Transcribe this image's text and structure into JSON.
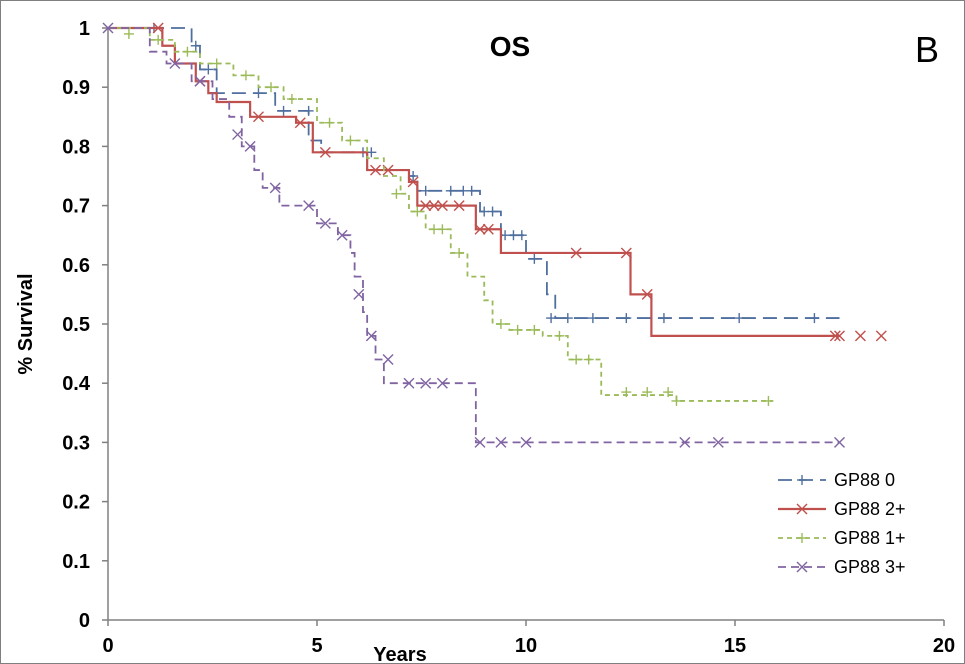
{
  "chart_data": {
    "type": "line",
    "title": "OS",
    "panel_label": "B",
    "xlabel": "Years",
    "ylabel": "% Survival",
    "xlim": [
      0,
      20
    ],
    "ylim": [
      0,
      1
    ],
    "xticks": [
      "0",
      "5",
      "10",
      "15",
      "20"
    ],
    "yticks": [
      "0",
      "0.1",
      "0.2",
      "0.3",
      "0.4",
      "0.5",
      "0.6",
      "0.7",
      "0.8",
      "0.9",
      "1"
    ],
    "grid": false,
    "legend_position": "bottom-right",
    "series": [
      {
        "name": "GP88 0",
        "color": "#4f6f9f",
        "dash": "long-dash",
        "marker": "plus",
        "x": [
          0,
          2.0,
          2.2,
          2.6,
          3.4,
          4.0,
          4.8,
          5.1,
          6.2,
          7.2,
          7.4,
          8.9,
          9.4,
          10.0,
          10.5,
          10.7,
          17.5
        ],
        "y": [
          1.0,
          0.97,
          0.93,
          0.89,
          0.89,
          0.86,
          0.81,
          0.79,
          0.76,
          0.75,
          0.725,
          0.69,
          0.65,
          0.61,
          0.55,
          0.51,
          0.51
        ],
        "censored_x": [
          1.1,
          2.1,
          2.4,
          3.6,
          4.2,
          4.8,
          6.1,
          6.3,
          7.3,
          7.6,
          8.2,
          8.5,
          8.7,
          9.0,
          9.2,
          9.5,
          9.7,
          9.9,
          10.2,
          10.6,
          11.0,
          11.6,
          12.4,
          13.3,
          15.1,
          16.9
        ],
        "censored_y": [
          1.0,
          0.97,
          0.93,
          0.89,
          0.86,
          0.86,
          0.79,
          0.79,
          0.75,
          0.725,
          0.725,
          0.725,
          0.725,
          0.69,
          0.69,
          0.65,
          0.65,
          0.65,
          0.61,
          0.51,
          0.51,
          0.51,
          0.51,
          0.51,
          0.51,
          0.51
        ]
      },
      {
        "name": "GP88 2+",
        "color": "#c0504d",
        "dash": "solid",
        "marker": "x",
        "x": [
          0,
          1.3,
          1.6,
          2.1,
          2.4,
          2.6,
          3.4,
          4.5,
          4.9,
          6.2,
          7.2,
          7.4,
          8.8,
          9.4,
          12.5,
          13.0,
          17.5
        ],
        "y": [
          1.0,
          0.97,
          0.94,
          0.91,
          0.89,
          0.875,
          0.85,
          0.84,
          0.79,
          0.76,
          0.74,
          0.7,
          0.66,
          0.62,
          0.55,
          0.48,
          0.48
        ],
        "censored_x": [
          1.2,
          2.2,
          3.6,
          4.6,
          5.2,
          6.4,
          6.7,
          7.3,
          7.6,
          7.8,
          8.0,
          8.4,
          8.9,
          9.1,
          11.2,
          12.4,
          12.9,
          17.4,
          18.0,
          18.5,
          17.5
        ],
        "censored_y": [
          1.0,
          0.91,
          0.85,
          0.84,
          0.79,
          0.76,
          0.76,
          0.74,
          0.7,
          0.7,
          0.7,
          0.7,
          0.66,
          0.66,
          0.62,
          0.62,
          0.55,
          0.48,
          0.48,
          0.48,
          0.48
        ]
      },
      {
        "name": "GP88 1+",
        "color": "#9bbb59",
        "dash": "short-dash",
        "marker": "plus",
        "x": [
          0,
          1.0,
          1.6,
          2.2,
          3.0,
          3.6,
          4.2,
          5.0,
          5.6,
          6.2,
          6.6,
          7.0,
          7.2,
          7.6,
          8.2,
          8.6,
          9.0,
          9.2,
          9.6,
          10.4,
          11.0,
          11.8,
          13.6,
          15.9
        ],
        "y": [
          1.0,
          0.98,
          0.96,
          0.94,
          0.92,
          0.9,
          0.88,
          0.84,
          0.81,
          0.78,
          0.75,
          0.72,
          0.69,
          0.66,
          0.62,
          0.58,
          0.54,
          0.5,
          0.49,
          0.48,
          0.44,
          0.38,
          0.37,
          0.37
        ],
        "censored_x": [
          0.5,
          1.2,
          1.9,
          2.6,
          3.3,
          3.9,
          4.4,
          5.3,
          5.8,
          6.9,
          7.4,
          7.8,
          8.0,
          8.4,
          9.4,
          9.8,
          10.2,
          10.8,
          11.2,
          11.5,
          12.4,
          12.9,
          13.4,
          13.6,
          15.8
        ],
        "censored_y": [
          0.99,
          0.98,
          0.96,
          0.94,
          0.92,
          0.9,
          0.88,
          0.84,
          0.81,
          0.72,
          0.69,
          0.66,
          0.66,
          0.62,
          0.5,
          0.49,
          0.49,
          0.48,
          0.44,
          0.44,
          0.385,
          0.385,
          0.385,
          0.37,
          0.37
        ]
      },
      {
        "name": "GP88 3+",
        "color": "#8064a2",
        "dash": "dash",
        "marker": "x",
        "x": [
          0,
          1.0,
          1.4,
          2.0,
          2.5,
          2.9,
          3.2,
          3.5,
          3.7,
          4.1,
          4.4,
          5.0,
          5.5,
          5.8,
          5.9,
          6.1,
          6.2,
          6.4,
          6.6,
          8.8,
          17.5
        ],
        "y": [
          1.0,
          0.96,
          0.94,
          0.91,
          0.88,
          0.85,
          0.8,
          0.76,
          0.73,
          0.7,
          0.7,
          0.67,
          0.65,
          0.62,
          0.58,
          0.52,
          0.48,
          0.44,
          0.4,
          0.3,
          0.3
        ],
        "censored_x": [
          0,
          1.6,
          2.2,
          3.1,
          3.4,
          4.0,
          4.8,
          5.2,
          5.6,
          6.0,
          6.3,
          6.7,
          7.2,
          7.6,
          8.0,
          8.9,
          9.4,
          10.0,
          13.8,
          14.6,
          17.5
        ],
        "censored_y": [
          1.0,
          0.94,
          0.91,
          0.82,
          0.8,
          0.73,
          0.7,
          0.67,
          0.65,
          0.55,
          0.48,
          0.44,
          0.4,
          0.4,
          0.4,
          0.3,
          0.3,
          0.3,
          0.3,
          0.3,
          0.3
        ]
      }
    ]
  }
}
